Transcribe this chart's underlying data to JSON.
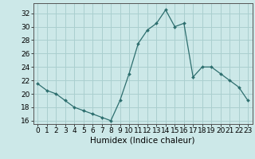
{
  "x": [
    0,
    1,
    2,
    3,
    4,
    5,
    6,
    7,
    8,
    9,
    10,
    11,
    12,
    13,
    14,
    15,
    16,
    17,
    18,
    19,
    20,
    21,
    22,
    23
  ],
  "y": [
    21.5,
    20.5,
    20.0,
    19.0,
    18.0,
    17.5,
    17.0,
    16.5,
    16.0,
    19.0,
    23.0,
    27.5,
    29.5,
    30.5,
    32.5,
    30.0,
    30.5,
    22.5,
    24.0,
    24.0,
    23.0,
    22.0,
    21.0,
    19.0
  ],
  "line_color": "#2d6e6e",
  "marker": "D",
  "marker_size": 2.0,
  "bg_color": "#cce8e8",
  "grid_color": "#aacfcf",
  "xlabel": "Humidex (Indice chaleur)",
  "ylim": [
    15.5,
    33.5
  ],
  "xlim": [
    -0.5,
    23.5
  ],
  "yticks": [
    16,
    18,
    20,
    22,
    24,
    26,
    28,
    30,
    32
  ],
  "xticks": [
    0,
    1,
    2,
    3,
    4,
    5,
    6,
    7,
    8,
    9,
    10,
    11,
    12,
    13,
    14,
    15,
    16,
    17,
    18,
    19,
    20,
    21,
    22,
    23
  ],
  "xtick_labels": [
    "0",
    "1",
    "2",
    "3",
    "4",
    "5",
    "6",
    "7",
    "8",
    "9",
    "10",
    "11",
    "12",
    "13",
    "14",
    "15",
    "16",
    "17",
    "18",
    "19",
    "20",
    "21",
    "22",
    "23"
  ],
  "font_size": 6.5,
  "label_font_size": 7.5
}
